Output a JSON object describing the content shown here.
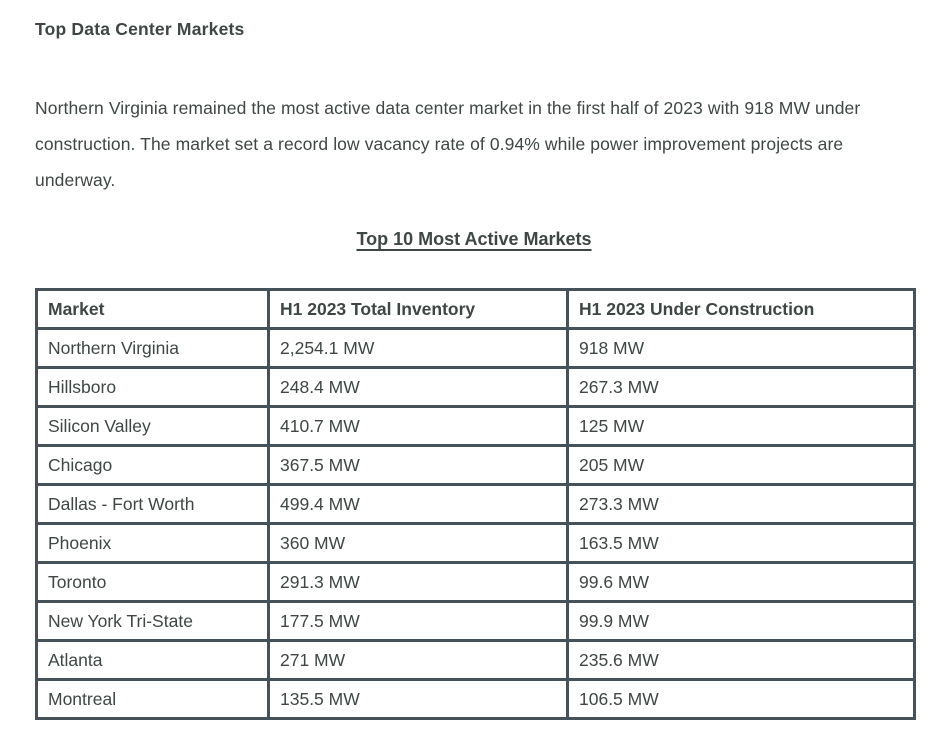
{
  "page": {
    "title": "Top Data Center Markets",
    "paragraph": "Northern Virginia remained the most active data center market in the first half of 2023 with 918 MW under construction. The market set a record low vacancy rate of 0.94% while power improvement projects are underway.",
    "table_title": "Top 10 Most Active Markets"
  },
  "colors": {
    "text": "#3e4743",
    "border": "#46525a",
    "background": "#ffffff"
  },
  "table": {
    "headers": [
      "Market",
      "H1 2023 Total Inventory",
      "H1 2023 Under Construction"
    ],
    "rows": [
      [
        "Northern Virginia",
        "2,254.1 MW",
        "918 MW"
      ],
      [
        "Hillsboro",
        "248.4 MW",
        "267.3 MW"
      ],
      [
        "Silicon Valley",
        "410.7 MW",
        "125 MW"
      ],
      [
        "Chicago",
        "367.5 MW",
        "205 MW"
      ],
      [
        "Dallas - Fort Worth",
        "499.4 MW",
        "273.3 MW"
      ],
      [
        "Phoenix",
        "360 MW",
        "163.5 MW"
      ],
      [
        "Toronto",
        "291.3 MW",
        "99.6 MW"
      ],
      [
        "New York Tri-State",
        "177.5 MW",
        "99.9 MW"
      ],
      [
        "Atlanta",
        "271 MW",
        "235.6 MW"
      ],
      [
        "Montreal",
        "135.5 MW",
        "106.5 MW"
      ]
    ]
  }
}
